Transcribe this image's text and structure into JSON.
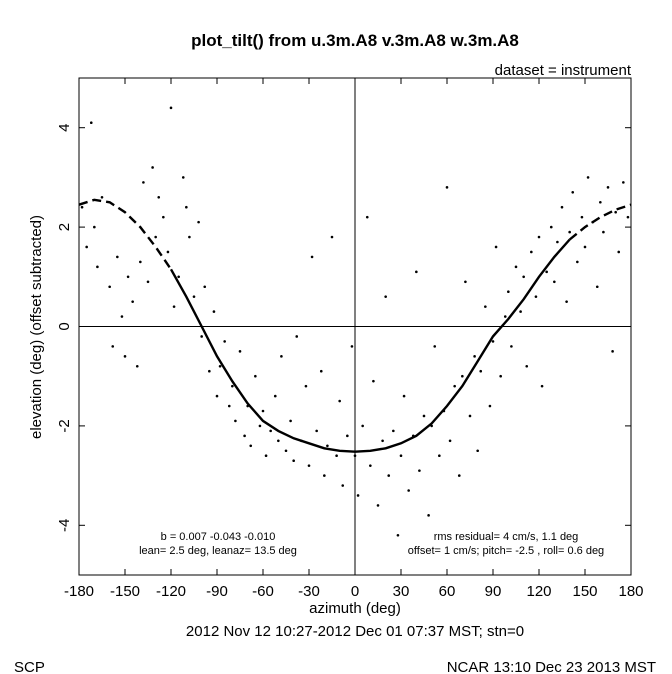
{
  "chart_data": {
    "type": "scatter",
    "title": "plot_tilt() from u.3m.A8 v.3m.A8 w.3m.A8",
    "dataset_label": "dataset = instrument",
    "xlabel": "azimuth (deg)",
    "ylabel": "elevation (deg)  (offset subtracted)",
    "xlim": [
      -180,
      180
    ],
    "ylim": [
      -5,
      5
    ],
    "x_ticks": [
      -180,
      -150,
      -120,
      -90,
      -60,
      -30,
      0,
      30,
      60,
      90,
      120,
      150,
      180
    ],
    "x_tick_labels": [
      "-180",
      "-150",
      "-120",
      "-90",
      "-60",
      "-30",
      "0",
      "30",
      "60",
      "90",
      "120",
      "150",
      "180"
    ],
    "y_ticks": [
      -4,
      -2,
      0,
      2,
      4
    ],
    "y_tick_labels": [
      "-4",
      "-2",
      "0",
      "2",
      "4"
    ],
    "reference_lines": {
      "x": 0,
      "y": 0
    },
    "fit_curve": {
      "style": "solid, dashed at extremes",
      "points": [
        [
          -180,
          2.45
        ],
        [
          -170,
          2.55
        ],
        [
          -160,
          2.5
        ],
        [
          -150,
          2.3
        ],
        [
          -140,
          2.0
        ],
        [
          -130,
          1.6
        ],
        [
          -120,
          1.15
        ],
        [
          -110,
          0.6
        ],
        [
          -100,
          0.0
        ],
        [
          -90,
          -0.6
        ],
        [
          -80,
          -1.1
        ],
        [
          -70,
          -1.55
        ],
        [
          -60,
          -1.9
        ],
        [
          -50,
          -2.1
        ],
        [
          -40,
          -2.25
        ],
        [
          -30,
          -2.35
        ],
        [
          -20,
          -2.45
        ],
        [
          -10,
          -2.5
        ],
        [
          0,
          -2.52
        ],
        [
          10,
          -2.5
        ],
        [
          20,
          -2.45
        ],
        [
          30,
          -2.35
        ],
        [
          40,
          -2.2
        ],
        [
          50,
          -1.95
        ],
        [
          60,
          -1.6
        ],
        [
          70,
          -1.2
        ],
        [
          80,
          -0.7
        ],
        [
          90,
          -0.2
        ],
        [
          100,
          0.15
        ],
        [
          110,
          0.55
        ],
        [
          120,
          1.0
        ],
        [
          130,
          1.4
        ],
        [
          140,
          1.75
        ],
        [
          150,
          2.0
        ],
        [
          160,
          2.2
        ],
        [
          170,
          2.35
        ],
        [
          180,
          2.45
        ]
      ]
    },
    "scatter_points": [
      [
        -178,
        2.4
      ],
      [
        -175,
        1.6
      ],
      [
        -172,
        4.1
      ],
      [
        -170,
        2.0
      ],
      [
        -168,
        1.2
      ],
      [
        -165,
        2.6
      ],
      [
        -160,
        0.8
      ],
      [
        -158,
        -0.4
      ],
      [
        -155,
        1.4
      ],
      [
        -152,
        0.2
      ],
      [
        -150,
        -0.6
      ],
      [
        -148,
        1.0
      ],
      [
        -145,
        0.5
      ],
      [
        -142,
        -0.8
      ],
      [
        -140,
        1.3
      ],
      [
        -138,
        2.9
      ],
      [
        -135,
        0.9
      ],
      [
        -132,
        3.2
      ],
      [
        -130,
        1.8
      ],
      [
        -128,
        2.6
      ],
      [
        -125,
        2.2
      ],
      [
        -122,
        1.5
      ],
      [
        -120,
        4.4
      ],
      [
        -118,
        0.4
      ],
      [
        -115,
        1.0
      ],
      [
        -112,
        3.0
      ],
      [
        -110,
        2.4
      ],
      [
        -108,
        1.8
      ],
      [
        -105,
        0.6
      ],
      [
        -102,
        2.1
      ],
      [
        -100,
        -0.2
      ],
      [
        -98,
        0.8
      ],
      [
        -95,
        -0.9
      ],
      [
        -92,
        0.3
      ],
      [
        -90,
        -1.4
      ],
      [
        -88,
        -0.8
      ],
      [
        -85,
        -0.3
      ],
      [
        -82,
        -1.6
      ],
      [
        -80,
        -1.2
      ],
      [
        -78,
        -1.9
      ],
      [
        -75,
        -0.5
      ],
      [
        -72,
        -2.2
      ],
      [
        -70,
        -1.6
      ],
      [
        -68,
        -2.4
      ],
      [
        -65,
        -1.0
      ],
      [
        -62,
        -2.0
      ],
      [
        -60,
        -1.7
      ],
      [
        -58,
        -2.6
      ],
      [
        -55,
        -2.1
      ],
      [
        -52,
        -1.4
      ],
      [
        -50,
        -2.3
      ],
      [
        -48,
        -0.6
      ],
      [
        -45,
        -2.5
      ],
      [
        -42,
        -1.9
      ],
      [
        -40,
        -2.7
      ],
      [
        -38,
        -0.2
      ],
      [
        -35,
        -2.3
      ],
      [
        -32,
        -1.2
      ],
      [
        -30,
        -2.8
      ],
      [
        -28,
        1.4
      ],
      [
        -25,
        -2.1
      ],
      [
        -22,
        -0.9
      ],
      [
        -20,
        -3.0
      ],
      [
        -18,
        -2.4
      ],
      [
        -15,
        1.8
      ],
      [
        -12,
        -2.6
      ],
      [
        -10,
        -1.5
      ],
      [
        -8,
        -3.2
      ],
      [
        -5,
        -2.2
      ],
      [
        -2,
        -0.4
      ],
      [
        0,
        -2.6
      ],
      [
        2,
        -3.4
      ],
      [
        5,
        -2.0
      ],
      [
        8,
        2.2
      ],
      [
        10,
        -2.8
      ],
      [
        12,
        -1.1
      ],
      [
        15,
        -3.6
      ],
      [
        18,
        -2.3
      ],
      [
        20,
        0.6
      ],
      [
        22,
        -3.0
      ],
      [
        25,
        -2.1
      ],
      [
        28,
        -4.2
      ],
      [
        30,
        -2.6
      ],
      [
        32,
        -1.4
      ],
      [
        35,
        -3.3
      ],
      [
        38,
        -2.2
      ],
      [
        40,
        1.1
      ],
      [
        42,
        -2.9
      ],
      [
        45,
        -1.8
      ],
      [
        48,
        -3.8
      ],
      [
        50,
        -2.0
      ],
      [
        52,
        -0.4
      ],
      [
        55,
        -2.6
      ],
      [
        58,
        -1.7
      ],
      [
        60,
        2.8
      ],
      [
        62,
        -2.3
      ],
      [
        65,
        -1.2
      ],
      [
        68,
        -3.0
      ],
      [
        70,
        -1.0
      ],
      [
        72,
        0.9
      ],
      [
        75,
        -1.8
      ],
      [
        78,
        -0.6
      ],
      [
        80,
        -2.5
      ],
      [
        82,
        -0.9
      ],
      [
        85,
        0.4
      ],
      [
        88,
        -1.6
      ],
      [
        90,
        -0.3
      ],
      [
        92,
        1.6
      ],
      [
        95,
        -1.0
      ],
      [
        98,
        0.2
      ],
      [
        100,
        0.7
      ],
      [
        102,
        -0.4
      ],
      [
        105,
        1.2
      ],
      [
        108,
        0.3
      ],
      [
        110,
        1.0
      ],
      [
        112,
        -0.8
      ],
      [
        115,
        1.5
      ],
      [
        118,
        0.6
      ],
      [
        120,
        1.8
      ],
      [
        122,
        -1.2
      ],
      [
        125,
        1.1
      ],
      [
        128,
        2.0
      ],
      [
        130,
        0.9
      ],
      [
        132,
        1.7
      ],
      [
        135,
        2.4
      ],
      [
        138,
        0.5
      ],
      [
        140,
        1.9
      ],
      [
        142,
        2.7
      ],
      [
        145,
        1.3
      ],
      [
        148,
        2.2
      ],
      [
        150,
        1.6
      ],
      [
        152,
        3.0
      ],
      [
        155,
        2.1
      ],
      [
        158,
        0.8
      ],
      [
        160,
        2.5
      ],
      [
        162,
        1.9
      ],
      [
        165,
        2.8
      ],
      [
        168,
        -0.5
      ],
      [
        170,
        2.3
      ],
      [
        172,
        1.5
      ],
      [
        175,
        2.9
      ],
      [
        178,
        2.2
      ]
    ],
    "annotations": {
      "fit_b": "b =  0.007 -0.043 -0.010",
      "fit_lean": "lean= 2.5 deg, leanaz= 13.5 deg",
      "rms": "rms residual= 4 cm/s, 1.1 deg",
      "offset": "offset= 1 cm/s; pitch= -2.5 , roll=  0.6 deg"
    },
    "time_range": "2012 Nov 12 10:27-2012 Dec 01 07:37 MST; stn=0"
  },
  "footer": {
    "left": "SCP",
    "right": "NCAR 13:10 Dec 23 2013 MST"
  }
}
